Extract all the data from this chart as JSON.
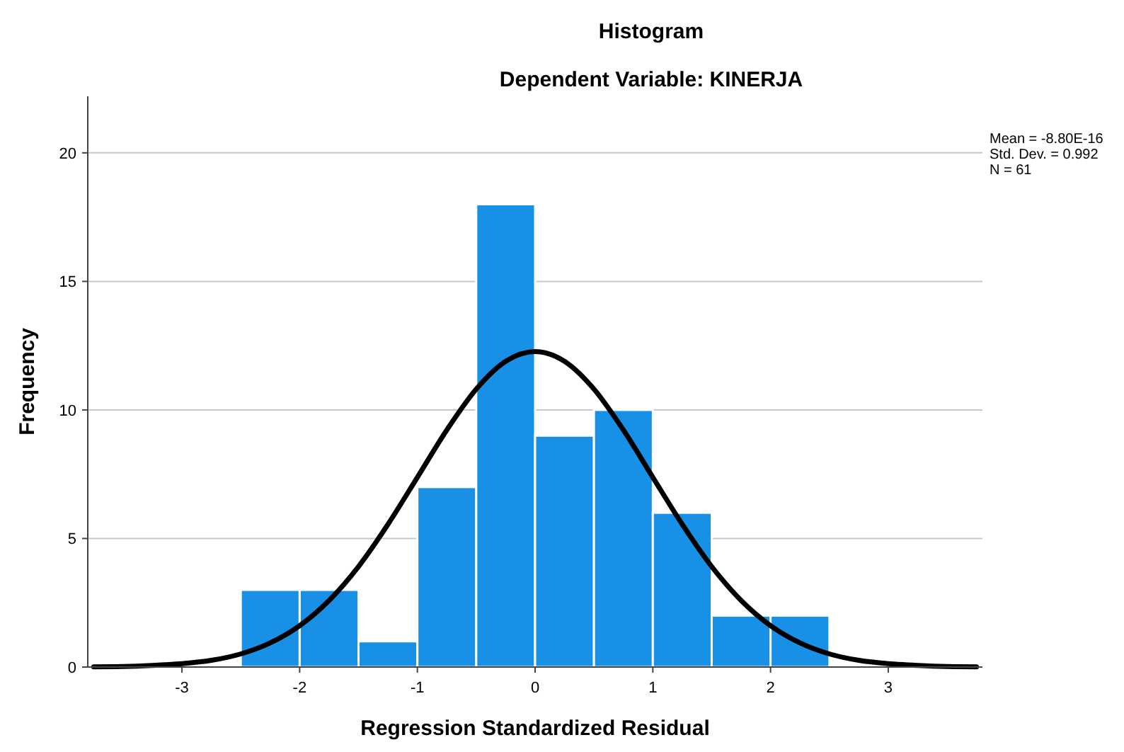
{
  "chart_data": {
    "type": "histogram",
    "title": "Histogram",
    "subtitle": "Dependent Variable: KINERJA",
    "xlabel": "Regression Standardized Residual",
    "ylabel": "Frequency",
    "bins": [
      -2.5,
      -2,
      -1.5,
      -1,
      -0.5,
      0,
      0.5,
      1,
      1.5,
      2,
      2.5
    ],
    "values": [
      3,
      3,
      1,
      7,
      18,
      9,
      10,
      6,
      2,
      2
    ],
    "color": "#1790e6",
    "series": [
      {
        "type": "line",
        "color": "#000000",
        "x": [
          -3.75,
          -3.5,
          -3.25,
          -3,
          -2.75,
          -2.5,
          -2.25,
          -2,
          -1.75,
          -1.5,
          -1.25,
          -1,
          -0.75,
          -0.5,
          -0.25,
          0,
          0.25,
          0.5,
          0.75,
          1,
          1.25,
          1.5,
          1.75,
          2,
          2.25,
          2.5,
          2.75,
          3,
          3.25,
          3.5,
          3.75
        ],
        "values": [
          0.01,
          0.02,
          0.06,
          0.13,
          0.26,
          0.51,
          0.94,
          1.61,
          2.59,
          3.91,
          5.55,
          7.38,
          9.22,
          10.81,
          11.89,
          12.27,
          11.89,
          10.81,
          9.22,
          7.38,
          5.55,
          3.91,
          2.59,
          1.61,
          0.94,
          0.51,
          0.26,
          0.13,
          0.06,
          0.02,
          0.01
        ]
      }
    ],
    "xlim": [
      -3.8,
      3.8
    ],
    "xticks": [
      -3,
      -2,
      -1,
      0,
      1,
      2,
      3
    ],
    "ylim": [
      0,
      22.2
    ],
    "yticks": [
      0,
      5,
      10,
      15,
      20
    ],
    "grid": "y",
    "annotations": [
      "Mean = -8.80E-16",
      "Std. Dev. = 0.992",
      "N = 61"
    ]
  }
}
